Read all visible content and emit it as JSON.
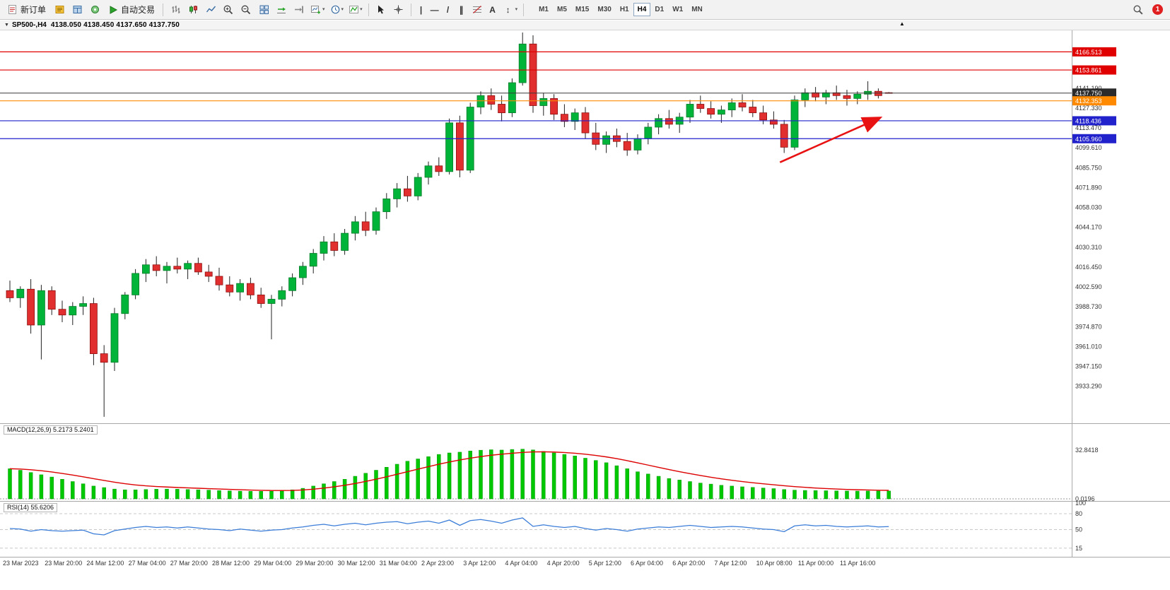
{
  "app": {
    "notification_count": "1"
  },
  "toolbar": {
    "new_order_label": "新订单",
    "auto_trading_label": "自动交易",
    "timeframes": [
      "M1",
      "M5",
      "M15",
      "M30",
      "H1",
      "H4",
      "D1",
      "W1",
      "MN"
    ],
    "active_timeframe": "H4",
    "glyphs": {
      "vertical_line": "|",
      "horizontal_line": "—",
      "trendline": "/",
      "channel": "∥",
      "text_tool": "A",
      "objects": "↕",
      "caret": "▾"
    }
  },
  "titlebar": {
    "caret": "▼",
    "symbol": "SP500-,H4",
    "ohlc": "4138.050 4138.450 4137.650 4137.750",
    "marker": "▲"
  },
  "chart_data": [
    {
      "type": "candlestick",
      "symbol": "SP500-",
      "timeframe": "H4",
      "current_ohlc": {
        "open": 4138.05,
        "high": 4138.45,
        "low": 4137.65,
        "close": 4137.75
      },
      "y_range": [
        3908,
        4180
      ],
      "y_tick_labels": [
        "4141.190",
        "4127.330",
        "4113.470",
        "4099.610",
        "4085.750",
        "4071.890",
        "4058.030",
        "4044.170",
        "4030.310",
        "4016.450",
        "4002.590",
        "3988.730",
        "3974.870",
        "3961.010",
        "3947.150",
        "3933.290"
      ],
      "x_labels": [
        "23 Mar 2023",
        "23 Mar 20:00",
        "24 Mar 12:00",
        "27 Mar 04:00",
        "27 Mar 20:00",
        "28 Mar 12:00",
        "29 Mar 04:00",
        "29 Mar 20:00",
        "30 Mar 12:00",
        "31 Mar 04:00",
        "2 Apr 23:00",
        "3 Apr 12:00",
        "4 Apr 04:00",
        "4 Apr 20:00",
        "5 Apr 12:00",
        "6 Apr 04:00",
        "6 Apr 20:00",
        "7 Apr 12:00",
        "10 Apr 08:00",
        "11 Apr 00:00",
        "11 Apr 16:00"
      ],
      "colors": {
        "bull": "#00b43a",
        "bull_edge": "#057a28",
        "bear": "#e12f2f",
        "bear_edge": "#8f1010",
        "wick": "#222222"
      },
      "hlines": [
        {
          "price": 4166.513,
          "label": "4166.513",
          "color": "#e00000",
          "style": "level"
        },
        {
          "price": 4153.861,
          "label": "4153.861",
          "color": "#e00000",
          "style": "level"
        },
        {
          "price": 4137.75,
          "label": "4137.750",
          "color": "#3a3a3a",
          "style": "current"
        },
        {
          "price": 4132.353,
          "label": "4132.353",
          "color": "#ff8a00",
          "style": "level"
        },
        {
          "price": 4118.436,
          "label": "4118.436",
          "color": "#2222cc",
          "style": "level"
        },
        {
          "price": 4105.96,
          "label": "4105.960",
          "color": "#2222cc",
          "style": "level"
        }
      ],
      "arrow": {
        "x1_index": 73.6,
        "price1": 4089.5,
        "x2_index": 83.0,
        "price2": 4120.0,
        "color": "#e81212"
      },
      "candles": [
        [
          4000,
          4007,
          3992,
          3995
        ],
        [
          3995,
          4003,
          3988,
          4001
        ],
        [
          4001,
          4008,
          3970,
          3976
        ],
        [
          3976,
          4004,
          3952,
          4000
        ],
        [
          4000,
          4003,
          3983,
          3987
        ],
        [
          3987,
          3993,
          3978,
          3983
        ],
        [
          3983,
          3992,
          3976,
          3989
        ],
        [
          3989,
          3996,
          3983,
          3991
        ],
        [
          3991,
          3995,
          3948,
          3956
        ],
        [
          3956,
          3962,
          3912,
          3950
        ],
        [
          3950,
          3988,
          3944,
          3984
        ],
        [
          3984,
          3999,
          3980,
          3997
        ],
        [
          3997,
          4015,
          3994,
          4012
        ],
        [
          4012,
          4022,
          4006,
          4018
        ],
        [
          4018,
          4024,
          4010,
          4014
        ],
        [
          4014,
          4020,
          4005,
          4017
        ],
        [
          4017,
          4023,
          4012,
          4015
        ],
        [
          4015,
          4021,
          4008,
          4019
        ],
        [
          4019,
          4023,
          4011,
          4013
        ],
        [
          4013,
          4018,
          4006,
          4010
        ],
        [
          4010,
          4016,
          4000,
          4004
        ],
        [
          4004,
          4010,
          3996,
          3999
        ],
        [
          3999,
          4008,
          3993,
          4005
        ],
        [
          4005,
          4009,
          3994,
          3997
        ],
        [
          3997,
          4002,
          3988,
          3991
        ],
        [
          3991,
          3997,
          3966,
          3994
        ],
        [
          3994,
          4003,
          3989,
          4000
        ],
        [
          4000,
          4012,
          3996,
          4009
        ],
        [
          4009,
          4020,
          4004,
          4017
        ],
        [
          4017,
          4029,
          4012,
          4026
        ],
        [
          4026,
          4038,
          4021,
          4034
        ],
        [
          4034,
          4040,
          4024,
          4028
        ],
        [
          4028,
          4043,
          4025,
          4040
        ],
        [
          4040,
          4052,
          4035,
          4048
        ],
        [
          4048,
          4055,
          4038,
          4042
        ],
        [
          4042,
          4058,
          4039,
          4055
        ],
        [
          4055,
          4068,
          4050,
          4064
        ],
        [
          4064,
          4075,
          4058,
          4071
        ],
        [
          4071,
          4080,
          4062,
          4066
        ],
        [
          4066,
          4082,
          4063,
          4079
        ],
        [
          4079,
          4090,
          4074,
          4087
        ],
        [
          4087,
          4093,
          4080,
          4083
        ],
        [
          4083,
          4120,
          4081,
          4117
        ],
        [
          4117,
          4122,
          4079,
          4084
        ],
        [
          4084,
          4131,
          4082,
          4128
        ],
        [
          4128,
          4139,
          4123,
          4136
        ],
        [
          4136,
          4141,
          4126,
          4130
        ],
        [
          4130,
          4136,
          4118,
          4124
        ],
        [
          4124,
          4148,
          4121,
          4145
        ],
        [
          4145,
          4180,
          4143,
          4172
        ],
        [
          4172,
          4178,
          4124,
          4129
        ],
        [
          4129,
          4138,
          4122,
          4134
        ],
        [
          4134,
          4137,
          4119,
          4123
        ],
        [
          4123,
          4130,
          4114,
          4118
        ],
        [
          4118,
          4127,
          4112,
          4124
        ],
        [
          4124,
          4128,
          4106,
          4110
        ],
        [
          4110,
          4117,
          4098,
          4102
        ],
        [
          4102,
          4111,
          4096,
          4108
        ],
        [
          4108,
          4113,
          4100,
          4104
        ],
        [
          4104,
          4110,
          4094,
          4098
        ],
        [
          4098,
          4109,
          4095,
          4106
        ],
        [
          4106,
          4117,
          4102,
          4114
        ],
        [
          4114,
          4123,
          4109,
          4120
        ],
        [
          4120,
          4126,
          4113,
          4116
        ],
        [
          4116,
          4124,
          4110,
          4121
        ],
        [
          4121,
          4133,
          4117,
          4130
        ],
        [
          4130,
          4136,
          4124,
          4127
        ],
        [
          4127,
          4132,
          4120,
          4123
        ],
        [
          4123,
          4129,
          4117,
          4126
        ],
        [
          4126,
          4134,
          4121,
          4131
        ],
        [
          4131,
          4137,
          4125,
          4128
        ],
        [
          4128,
          4133,
          4121,
          4124
        ],
        [
          4124,
          4129,
          4116,
          4119
        ],
        [
          4119,
          4125,
          4113,
          4116
        ],
        [
          4116,
          4119,
          4096,
          4100
        ],
        [
          4100,
          4136,
          4098,
          4133
        ],
        [
          4133,
          4141,
          4128,
          4138
        ],
        [
          4138,
          4142,
          4132,
          4135
        ],
        [
          4135,
          4140,
          4130,
          4138
        ],
        [
          4138,
          4143,
          4133,
          4136
        ],
        [
          4136,
          4140,
          4129,
          4134
        ],
        [
          4134,
          4139,
          4130,
          4137
        ],
        [
          4137,
          4146,
          4133,
          4139
        ],
        [
          4139,
          4141,
          4134,
          4136
        ],
        [
          4138.05,
          4138.45,
          4137.65,
          4137.75
        ]
      ]
    },
    {
      "type": "bar",
      "name": "MACD",
      "label": "MACD(12,26,9) 5.2173 5.2401",
      "axis_max_label": "32.8418",
      "axis_zero_label": "0.0196",
      "axis_max": 32.8418,
      "histogram_color": "#00c800",
      "signal_color": "#dd0000",
      "values": [
        20,
        19,
        17.5,
        16,
        14.5,
        13,
        11.5,
        10,
        8.5,
        7.5,
        6.5,
        6,
        6,
        6.2,
        6.4,
        6.5,
        6.4,
        6.2,
        6,
        5.8,
        5.5,
        5.3,
        5.1,
        5,
        5,
        5.1,
        5.4,
        6,
        7,
        8.5,
        10,
        11.5,
        13,
        15,
        17,
        19,
        21,
        23,
        25,
        26.5,
        28,
        29.5,
        30.5,
        31,
        31.8,
        32.3,
        32.6,
        32.4,
        32.8,
        33,
        32.5,
        31.5,
        30.5,
        29.5,
        28.5,
        27,
        25.5,
        24,
        22,
        20,
        18,
        16.5,
        15,
        13.5,
        12.5,
        11.5,
        10.5,
        9.8,
        9,
        8.5,
        8,
        7.6,
        7.2,
        6.8,
        6.2,
        5.8,
        5.6,
        5.5,
        5.4,
        5.3,
        5.2,
        5.15,
        5.2,
        5.2,
        5.2173
      ]
    },
    {
      "type": "line",
      "name": "RSI",
      "label": "RSI(14) 55.6206",
      "line_color": "#3b7dd8",
      "levels": [
        80,
        50,
        15
      ],
      "axis_labels": [
        "100",
        "80",
        "50",
        "15"
      ],
      "values": [
        52,
        51,
        47,
        50,
        48,
        47,
        48,
        49,
        42,
        40,
        48,
        51,
        54,
        56,
        54,
        55,
        53,
        55,
        53,
        51,
        50,
        48,
        51,
        49,
        47,
        49,
        50,
        53,
        55,
        58,
        60,
        57,
        60,
        62,
        59,
        62,
        64,
        65,
        61,
        64,
        66,
        62,
        68,
        58,
        67,
        69,
        66,
        62,
        68,
        72,
        56,
        59,
        56,
        54,
        56,
        52,
        49,
        52,
        50,
        47,
        51,
        53,
        55,
        54,
        56,
        58,
        56,
        54,
        55,
        56,
        55,
        53,
        51,
        50,
        46,
        57,
        59,
        57,
        58,
        56,
        55,
        56,
        57,
        55,
        55.62
      ]
    }
  ]
}
